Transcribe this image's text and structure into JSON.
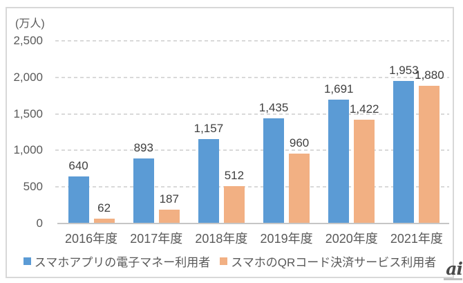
{
  "chart_data": {
    "type": "bar",
    "title": "",
    "unit_label": "(万人)",
    "categories": [
      "2016年度",
      "2017年度",
      "2018年度",
      "2019年度",
      "2020年度",
      "2021年度"
    ],
    "series": [
      {
        "name": "スマホアプリの電子マネー利用者",
        "color": "#5B9BD5",
        "values": [
          640,
          893,
          1157,
          1435,
          1691,
          1953
        ],
        "labels": [
          "640",
          "893",
          "1,157",
          "1,435",
          "1,691",
          "1,953"
        ]
      },
      {
        "name": "スマホのQRコード決済サービス利用者",
        "color": "#F2B083",
        "values": [
          62,
          187,
          512,
          960,
          1422,
          1880
        ],
        "labels": [
          "62",
          "187",
          "512",
          "960",
          "1,422",
          "1,880"
        ]
      }
    ],
    "y_axis": {
      "max": 2500,
      "ticks": [
        0,
        500,
        1000,
        1500,
        2000,
        2500
      ],
      "tick_labels": [
        "0",
        "500",
        "1,000",
        "1,500",
        "2,000",
        "2,500"
      ],
      "grid": "dashed"
    },
    "xlabel": "",
    "ylabel": "(万人)",
    "legend_position": "bottom"
  },
  "watermark": {
    "text": "ai"
  },
  "style": {
    "grid_color": "#D9D9D9",
    "axis_line_color": "#C6C6C6",
    "axis_text_color": "#595959",
    "value_label_color": "#404040",
    "frame_border_color": "#D8D8D8",
    "background": "#FFFFFF"
  }
}
